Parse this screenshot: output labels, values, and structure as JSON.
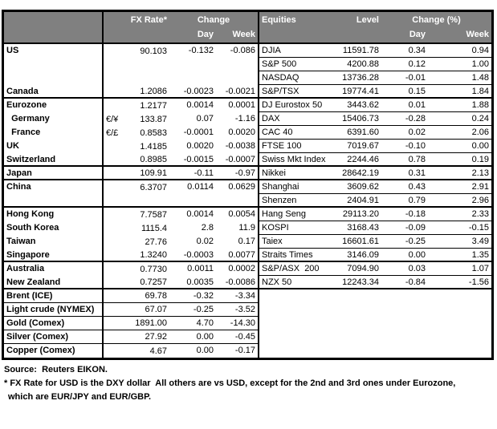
{
  "header": {
    "fx_rate": "FX Rate*",
    "change": "Change",
    "day": "Day",
    "week": "Week",
    "equities": "Equities",
    "level": "Level",
    "change_pct": "Change (%)"
  },
  "rows": [
    {
      "fx": {
        "label": "US",
        "pair": "",
        "rate": "90.103",
        "day": "-0.132",
        "week": "-0.086"
      },
      "eq": {
        "label": "DJIA",
        "level": "11591.78",
        "day": "0.34",
        "week": "0.94"
      },
      "divider": false
    },
    {
      "fx": {
        "label": "",
        "pair": "",
        "rate": "",
        "day": "",
        "week": ""
      },
      "eq": {
        "label": "S&P 500",
        "level": "4200.88",
        "day": "0.12",
        "week": "1.00"
      },
      "divider": false
    },
    {
      "fx": {
        "label": "",
        "pair": "",
        "rate": "",
        "day": "",
        "week": ""
      },
      "eq": {
        "label": "NASDAQ",
        "level": "13736.28",
        "day": "-0.01",
        "week": "1.48"
      },
      "divider": false
    },
    {
      "fx": {
        "label": "Canada",
        "pair": "",
        "rate": "1.2086",
        "day": "-0.0023",
        "week": "-0.0021"
      },
      "eq": {
        "label": "S&P/TSX",
        "level": "19774.41",
        "day": "0.15",
        "week": "1.84"
      },
      "divider": true
    },
    {
      "fx": {
        "label": "Eurozone",
        "pair": "",
        "rate": "1.2177",
        "day": "0.0014",
        "week": "0.0001"
      },
      "eq": {
        "label": "DJ Eurostox 50",
        "level": "3443.62",
        "day": "0.01",
        "week": "1.88"
      },
      "divider": false
    },
    {
      "fx": {
        "label": "  Germany",
        "pair": "€/¥",
        "rate": "133.87",
        "day": "0.07",
        "week": "-1.16"
      },
      "eq": {
        "label": "DAX",
        "level": "15406.73",
        "day": "-0.28",
        "week": "0.24"
      },
      "divider": false
    },
    {
      "fx": {
        "label": "  France",
        "pair": "€/£",
        "rate": "0.8583",
        "day": "-0.0001",
        "week": "0.0020"
      },
      "eq": {
        "label": "CAC 40",
        "level": "6391.60",
        "day": "0.02",
        "week": "2.06"
      },
      "divider": false
    },
    {
      "fx": {
        "label": "UK",
        "pair": "",
        "rate": "1.4185",
        "day": "0.0020",
        "week": "-0.0038"
      },
      "eq": {
        "label": "FTSE 100",
        "level": "7019.67",
        "day": "-0.10",
        "week": "0.00"
      },
      "divider": false
    },
    {
      "fx": {
        "label": "Switzerland",
        "pair": "",
        "rate": "0.8985",
        "day": "-0.0015",
        "week": "-0.0007"
      },
      "eq": {
        "label": "Swiss Mkt Index",
        "level": "2244.46",
        "day": "0.78",
        "week": "0.19"
      },
      "divider": true
    },
    {
      "fx": {
        "label": "Japan",
        "pair": "",
        "rate": "109.91",
        "day": "-0.11",
        "week": "-0.97"
      },
      "eq": {
        "label": "Nikkei",
        "level": "28642.19",
        "day": "0.31",
        "week": "2.13"
      },
      "divider": true
    },
    {
      "fx": {
        "label": "China",
        "pair": "",
        "rate": "6.3707",
        "day": "0.0114",
        "week": "0.0629"
      },
      "eq": {
        "label": "Shanghai",
        "level": "3609.62",
        "day": "0.43",
        "week": "2.91"
      },
      "divider": false
    },
    {
      "fx": {
        "label": "",
        "pair": "",
        "rate": "",
        "day": "",
        "week": ""
      },
      "eq": {
        "label": "Shenzen",
        "level": "2404.91",
        "day": "0.79",
        "week": "2.96"
      },
      "divider": true
    },
    {
      "fx": {
        "label": "Hong Kong",
        "pair": "",
        "rate": "7.7587",
        "day": "0.0014",
        "week": "0.0054"
      },
      "eq": {
        "label": "Hang Seng",
        "level": "29113.20",
        "day": "-0.18",
        "week": "2.33"
      },
      "divider": false
    },
    {
      "fx": {
        "label": "South Korea",
        "pair": "",
        "rate": "1115.4",
        "day": "2.8",
        "week": "11.9"
      },
      "eq": {
        "label": "KOSPI",
        "level": "3168.43",
        "day": "-0.09",
        "week": "-0.15"
      },
      "divider": false
    },
    {
      "fx": {
        "label": "Taiwan",
        "pair": "",
        "rate": "27.76",
        "day": "0.02",
        "week": "0.17"
      },
      "eq": {
        "label": "Taiex",
        "level": "16601.61",
        "day": "-0.25",
        "week": "3.49"
      },
      "divider": false
    },
    {
      "fx": {
        "label": "Singapore",
        "pair": "",
        "rate": "1.3240",
        "day": "-0.0003",
        "week": "0.0077"
      },
      "eq": {
        "label": "Straits Times",
        "level": "3146.09",
        "day": "0.00",
        "week": "1.35"
      },
      "divider": true
    },
    {
      "fx": {
        "label": "Australia",
        "pair": "",
        "rate": "0.7730",
        "day": "0.0011",
        "week": "0.0002"
      },
      "eq": {
        "label": "S&P/ASX  200",
        "level": "7094.90",
        "day": "0.03",
        "week": "1.07"
      },
      "divider": false
    },
    {
      "fx": {
        "label": "New Zealand",
        "pair": "",
        "rate": "0.7257",
        "day": "0.0035",
        "week": "-0.0086"
      },
      "eq": {
        "label": "NZX 50",
        "level": "12243.34",
        "day": "-0.84",
        "week": "-1.56"
      },
      "divider": true
    },
    {
      "fx": {
        "label": "Brent (ICE)",
        "pair": "",
        "rate": "69.78",
        "day": "-0.32",
        "week": "-3.34"
      },
      "eq": {
        "label": "",
        "level": "",
        "day": "",
        "week": ""
      },
      "divider": false
    },
    {
      "fx": {
        "label": "Light crude (NYMEX)",
        "pair": "",
        "rate": "67.07",
        "day": "-0.25",
        "week": "-3.52"
      },
      "eq": {
        "label": "",
        "level": "",
        "day": "",
        "week": ""
      },
      "divider": false
    },
    {
      "fx": {
        "label": "Gold (Comex)",
        "pair": "",
        "rate": "1891.00",
        "day": "4.70",
        "week": "-14.30"
      },
      "eq": {
        "label": "",
        "level": "",
        "day": "",
        "week": ""
      },
      "divider": false
    },
    {
      "fx": {
        "label": "Silver (Comex)",
        "pair": "",
        "rate": "27.92",
        "day": "0.00",
        "week": "-0.45"
      },
      "eq": {
        "label": "",
        "level": "",
        "day": "",
        "week": ""
      },
      "divider": false
    },
    {
      "fx": {
        "label": "Copper (Comex)",
        "pair": "",
        "rate": "4.67",
        "day": "0.00",
        "week": "-0.17"
      },
      "eq": {
        "label": "",
        "level": "",
        "day": "",
        "week": ""
      },
      "divider": false
    }
  ],
  "footer": {
    "source": "Source:  Reuters EIKON.",
    "note1": "* FX Rate for USD is the DXY dollar  All others are vs USD, except for the 2nd and 3rd ones under Eurozone,",
    "note2": "which are EUR/JPY and EUR/GBP."
  },
  "colors": {
    "header_bg": "#808080",
    "header_text": "#ffffff",
    "border": "#000000"
  }
}
